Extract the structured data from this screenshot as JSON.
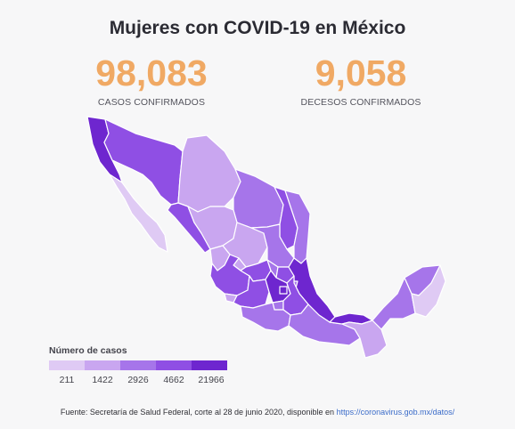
{
  "title": "Mujeres con COVID-19 en México",
  "stats": {
    "cases": {
      "value": "98,083",
      "label": "CASOS CONFIRMADOS"
    },
    "deaths": {
      "value": "9,058",
      "label": "DECESOS CONFIRMADOS"
    }
  },
  "colors": {
    "accent": "#f0a964",
    "scale": [
      "#dfcaf4",
      "#c9a6f0",
      "#a675ea",
      "#8f4fe4",
      "#6e26cf"
    ],
    "border": "#ffffff"
  },
  "legend": {
    "title": "Número de casos",
    "ticks": [
      "211",
      "1422",
      "2926",
      "4662",
      "21966"
    ]
  },
  "source": {
    "text": "Fuente: Secretaría de Salud Federal, corte al 28 de junio 2020, disponible en ",
    "link": "https://coronavirus.gob.mx/datos/"
  },
  "map": {
    "type": "choropleth",
    "region": "Mexico states",
    "bins": [
      "211",
      "1422",
      "2926",
      "4662",
      "21966"
    ]
  }
}
